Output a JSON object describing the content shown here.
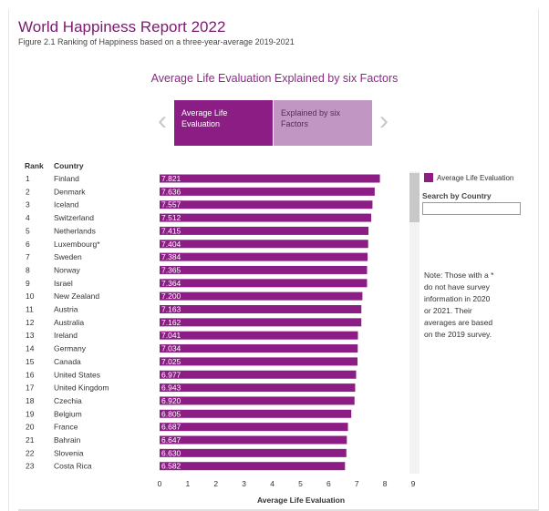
{
  "header": {
    "title": "World Happiness Report 2022",
    "subtitle": "Figure 2.1 Ranking of Happiness based on a three-year-average 2019-2021"
  },
  "section_title": "Average Life Evaluation Explained by six Factors",
  "tabs": [
    {
      "label": "Average Life Evaluation",
      "active": true
    },
    {
      "label": "Explained by six Factors",
      "active": false
    }
  ],
  "nav": {
    "prev_icon": "chevron-left-icon",
    "next_icon": "chevron-right-icon"
  },
  "table_headers": {
    "rank": "Rank",
    "country": "Country"
  },
  "legend": {
    "label": "Average Life Evaluation",
    "color": "#8b1d85"
  },
  "search": {
    "label": "Search by Country",
    "value": ""
  },
  "note": "Note: Those with a *\ndo not have survey\ninformation in 2020\nor 2021. Their\naverages are based\non the 2019 survey.",
  "chart_data": {
    "type": "bar",
    "orientation": "horizontal",
    "xlabel": "Average Life Evaluation",
    "xlim": [
      0,
      9
    ],
    "xticks": [
      "0",
      "1",
      "2",
      "3",
      "4",
      "5",
      "6",
      "7",
      "8",
      "9"
    ],
    "bar_color": "#8b1d85",
    "ranks": [
      "1",
      "2",
      "3",
      "4",
      "5",
      "6",
      "7",
      "8",
      "9",
      "10",
      "11",
      "12",
      "13",
      "14",
      "15",
      "16",
      "17",
      "18",
      "19",
      "20",
      "21",
      "22",
      "23"
    ],
    "categories": [
      "Finland",
      "Denmark",
      "Iceland",
      "Switzerland",
      "Netherlands",
      "Luxembourg*",
      "Sweden",
      "Norway",
      "Israel",
      "New Zealand",
      "Austria",
      "Australia",
      "Ireland",
      "Germany",
      "Canada",
      "United States",
      "United Kingdom",
      "Czechia",
      "Belgium",
      "France",
      "Bahrain",
      "Slovenia",
      "Costa Rica"
    ],
    "values": [
      7.821,
      7.636,
      7.557,
      7.512,
      7.415,
      7.404,
      7.384,
      7.365,
      7.364,
      7.2,
      7.163,
      7.162,
      7.041,
      7.034,
      7.025,
      6.977,
      6.943,
      6.92,
      6.805,
      6.687,
      6.647,
      6.63,
      6.582
    ],
    "value_labels": [
      "7.821",
      "7.636",
      "7.557",
      "7.512",
      "7.415",
      "7.404",
      "7.384",
      "7.365",
      "7.364",
      "7.200",
      "7.163",
      "7.162",
      "7.041",
      "7.034",
      "7.025",
      "6.977",
      "6.943",
      "6.920",
      "6.805",
      "6.687",
      "6.647",
      "6.630",
      "6.582"
    ]
  }
}
